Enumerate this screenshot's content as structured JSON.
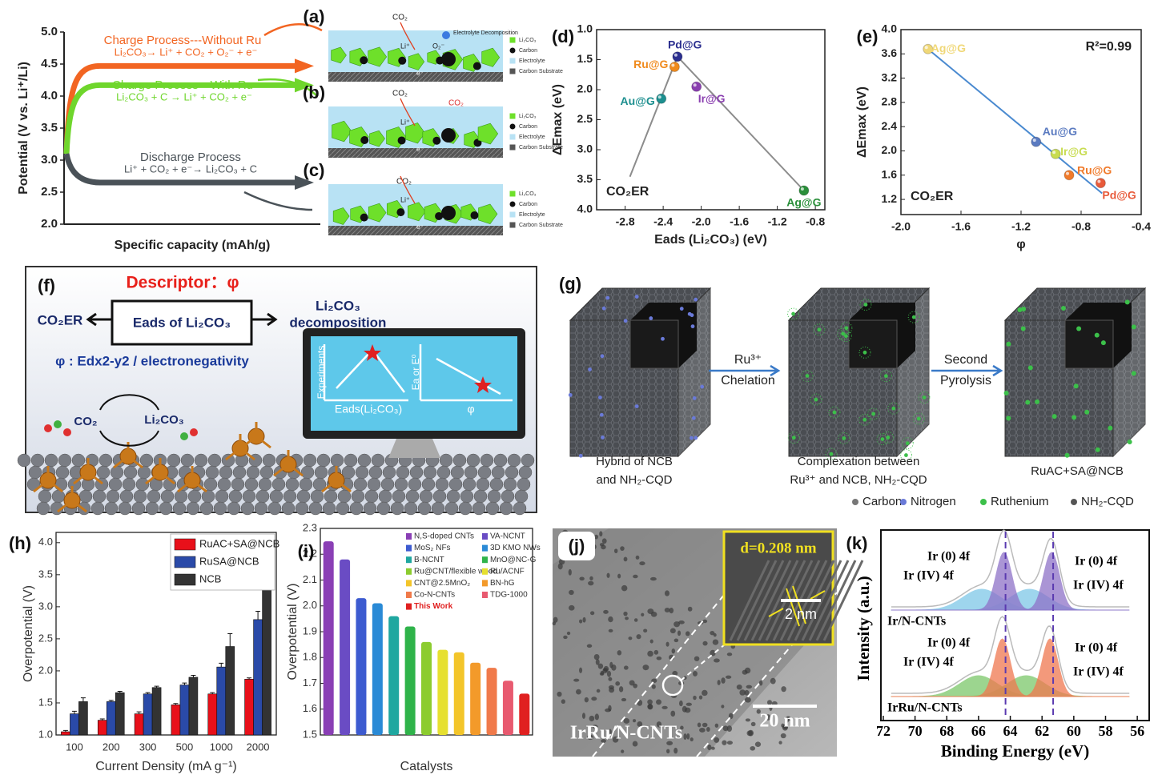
{
  "figure": {
    "panel_labels": {
      "a": "(a)",
      "b": "(b)",
      "c": "(c)",
      "d": "(d)",
      "e": "(e)",
      "f": "(f)",
      "g": "(g)",
      "h": "(h)",
      "i": "(i)",
      "j": "(j)",
      "k": "(k)"
    },
    "schematic": {
      "legend": [
        "Li₂CO₃",
        "Carbon",
        "Electrolyte",
        "Carbon Substrate"
      ],
      "co2": "CO₂",
      "li": "Li⁺",
      "o2": "O₂⁻",
      "e": "e⁻",
      "decomposition": "Electrolyte Decomposition"
    },
    "f": {
      "descriptor": "Descriptor：φ",
      "co2er": "CO₂ER",
      "eads": "Eads of Li₂CO₃",
      "li2co3": "Li₂CO₃",
      "decomposition": "decomposition",
      "phi_def": "φ : Edx2-y2 / electronegativity",
      "cycle": [
        "CO₂",
        "Li₂CO₃"
      ],
      "screen": [
        "Experiments",
        "Eads(Li₂CO₃)",
        "Ea or E⁰",
        "φ"
      ]
    },
    "g": {
      "step1": [
        "Ru³⁺",
        "Chelation"
      ],
      "step2": [
        "Second",
        "Pyrolysis"
      ],
      "captions": [
        [
          "Hybrid of NCB",
          "and NH₂-CQD"
        ],
        [
          "Complexation between",
          "Ru³⁺ and NCB, NH₂-CQD"
        ],
        [
          "RuAC+SA@NCB"
        ]
      ],
      "legend": [
        "Carbon",
        "Nitrogen",
        "Ruthenium",
        "NH₂-CQD"
      ]
    },
    "j": {
      "lattice": "d=0.208 nm",
      "inset_scale": "2 nm",
      "scale": "20 nm",
      "sample": "IrRu/N-CNTs"
    }
  },
  "chart_data": [
    {
      "type": "line",
      "ylabel": "Potential (V vs. Li⁺/Li)",
      "xlabel": "Specific capacity (mAh/g)",
      "ylim": [
        2.0,
        5.0
      ],
      "yticks": [
        {
          "value": 2,
          "label": "2.0"
        },
        2.5,
        {
          "value": 3,
          "label": "3.0"
        },
        3.5,
        {
          "value": 4,
          "label": "4.0"
        },
        4.5,
        {
          "value": 5,
          "label": "5.0"
        }
      ],
      "curves": [
        {
          "color": "#f26522",
          "start": 3.1,
          "end": 4.47
        },
        {
          "color": "#6fd62c",
          "start": 3.1,
          "end": 4.17
        },
        {
          "color": "#4a5258",
          "start": 3.1,
          "end": 2.65
        }
      ],
      "annotations": [
        "Charge Process---Without Ru",
        "Li₂CO₃→ Li⁺ + CO₂ + O₂⁻ + e⁻",
        "Charge Process---With Ru",
        "Li₂CO₃ + C → Li⁺ + CO₂ + e⁻",
        "Discharge Process",
        "Li⁺ + CO₂ + e⁻→ Li₂CO₃ + C"
      ]
    },
    {
      "type": "scatter",
      "xlabel": "Eads (Li₂CO₃) (eV)",
      "ylabel": "ΔEmax (eV)",
      "annotation": "CO₂ER",
      "xlim": [
        -3.1,
        -0.7
      ],
      "xticks": [
        -2.8,
        -2.4,
        {
          "value": -2,
          "label": "-2.0"
        },
        -1.6,
        -1.2,
        -0.8
      ],
      "ylim": [
        1.0,
        4.0
      ],
      "y_inverted": true,
      "yticks": [
        {
          "value": 1,
          "label": "1.0"
        },
        1.5,
        {
          "value": 2,
          "label": "2.0"
        },
        2.5,
        {
          "value": 3,
          "label": "3.0"
        },
        3.5,
        {
          "value": 4,
          "label": "4.0"
        }
      ],
      "labels": [
        "Pd@G",
        "Ru@G",
        "Au@G",
        "Ir@G",
        "Ag@G"
      ],
      "x": [
        -2.25,
        -2.28,
        -2.42,
        -2.05,
        -0.92
      ],
      "values": [
        1.45,
        1.62,
        2.15,
        1.95,
        3.68
      ],
      "colors": [
        "#2b2f8f",
        "#f08a1c",
        "#1d8f8f",
        "#8a3fb0",
        "#2a8f3a"
      ],
      "lines": [
        {
          "x": [
            -2.75,
            -2.25,
            -0.92
          ],
          "values": [
            3.45,
            1.45,
            3.68
          ],
          "color": "#8c8c8c"
        }
      ]
    },
    {
      "type": "scatter",
      "xlabel": "φ",
      "ylabel": "ΔEmax (eV)",
      "annotation": "CO₂ER",
      "r2": "R²=0.99",
      "xlim": [
        -2.0,
        -0.4
      ],
      "xticks": [
        {
          "value": -2,
          "label": "-2.0"
        },
        -1.6,
        -1.2,
        -0.8,
        -0.4
      ],
      "ylim": [
        0.95,
        4.0
      ],
      "yticks": [
        1.2,
        1.6,
        {
          "value": 2,
          "label": "2.0"
        },
        2.4,
        2.8,
        3.2,
        3.6,
        {
          "value": 4,
          "label": "4.0"
        }
      ],
      "labels": [
        "Ag@G",
        "Au@G",
        "Ir@G",
        "Ru@G",
        "Pd@G"
      ],
      "x": [
        -1.82,
        -1.1,
        -0.97,
        -0.88,
        -0.67
      ],
      "values": [
        3.68,
        2.15,
        1.95,
        1.6,
        1.47
      ],
      "colors": [
        "#f0d878",
        "#5a7ac0",
        "#c8dc50",
        "#f07a2a",
        "#e85a3a"
      ],
      "lines": [
        {
          "x": [
            -1.82,
            -0.66
          ],
          "values": [
            3.68,
            1.3
          ],
          "color": "#4a8ad0"
        }
      ]
    },
    {
      "type": "bar",
      "xlabel": "Current Density (mA g⁻¹)",
      "ylabel": "Overpotential (V)",
      "legend": "upper left",
      "categories": [
        "100",
        "200",
        "300",
        "500",
        "1000",
        "2000"
      ],
      "ylim": [
        1.0,
        4.16
      ],
      "yticks": [
        {
          "value": 1,
          "label": "1.0"
        },
        1.5,
        {
          "value": 2,
          "label": "2.0"
        },
        2.5,
        {
          "value": 3,
          "label": "3.0"
        },
        3.5,
        {
          "value": 4,
          "label": "4.0"
        }
      ],
      "series": [
        {
          "name": "RuAC+SA@NCB",
          "color": "#e8101a",
          "values": [
            1.05,
            1.23,
            1.33,
            1.47,
            1.64,
            1.87
          ],
          "errors": [
            0.02,
            0.02,
            0.03,
            0.02,
            0.02,
            0.02
          ]
        },
        {
          "name": "RuSA@NCB",
          "color": "#2a4aa8",
          "values": [
            1.33,
            1.52,
            1.64,
            1.78,
            2.06,
            2.8
          ],
          "errors": [
            0.04,
            0.02,
            0.02,
            0.03,
            0.06,
            0.13
          ]
        },
        {
          "name": "NCB",
          "color": "#333333",
          "values": [
            1.52,
            1.66,
            1.74,
            1.9,
            2.38,
            3.28
          ],
          "errors": [
            0.06,
            0.02,
            0.02,
            0.03,
            0.2,
            0.09
          ]
        }
      ]
    },
    {
      "type": "bar",
      "xlabel": "Catalysts",
      "ylabel": "Overpotential (V)",
      "legend": "upper right",
      "categories": [
        "N,S-doped CNTs",
        "VA-NCNT",
        "MoS₂ NFs",
        "3D KMO NWs",
        "B-NCNT",
        "MnO@NC-G",
        "Ru@CNT/flexible wood",
        "Ru/ACNF",
        "CNT@2.5MnO₂",
        "BN-hG",
        "Co-N-CNTs",
        "TDG-1000",
        "This Work"
      ],
      "values": [
        2.25,
        2.18,
        2.03,
        2.01,
        1.96,
        1.92,
        1.86,
        1.83,
        1.82,
        1.78,
        1.76,
        1.71,
        1.66
      ],
      "colors": [
        "#8a3fb5",
        "#6a4cc4",
        "#3d5bd0",
        "#2a8ad6",
        "#1fa7a0",
        "#2fb34a",
        "#8ccc2f",
        "#e6e030",
        "#f3c52a",
        "#f39a2a",
        "#f07a4a",
        "#e85a70",
        "#e02020"
      ],
      "ylim": [
        1.5,
        2.3
      ],
      "yticks": [
        1.5,
        1.6,
        1.7,
        1.8,
        1.9,
        {
          "value": 2,
          "label": "2.0"
        },
        2.1,
        2.2,
        2.3
      ]
    },
    {
      "type": "line",
      "xlabel": "Binding Energy (eV)",
      "ylabel": "Intensity (a.u.)",
      "xlim": [
        72.15,
        55.25
      ],
      "xticks": [
        72,
        70,
        68,
        66,
        64,
        62,
        60,
        58,
        56
      ],
      "dashed_lines": [
        64.3,
        61.3
      ],
      "annotations": [
        "Ir (0) 4f",
        "Ir (IV) 4f"
      ],
      "samples": [
        {
          "name": "Ir/N-CNTs",
          "metal_peaks": [
            64.4,
            61.4
          ],
          "oxide_peaks": [
            65.8,
            62.8
          ],
          "colors": [
            "#8e72c8",
            "#7ec8e8"
          ]
        },
        {
          "name": "IrRu/N-CNTs",
          "metal_peaks": [
            64.5,
            61.5
          ],
          "oxide_peaks": [
            66.0,
            63.0
          ],
          "colors": [
            "#f07850",
            "#7cc86a"
          ]
        }
      ]
    }
  ]
}
